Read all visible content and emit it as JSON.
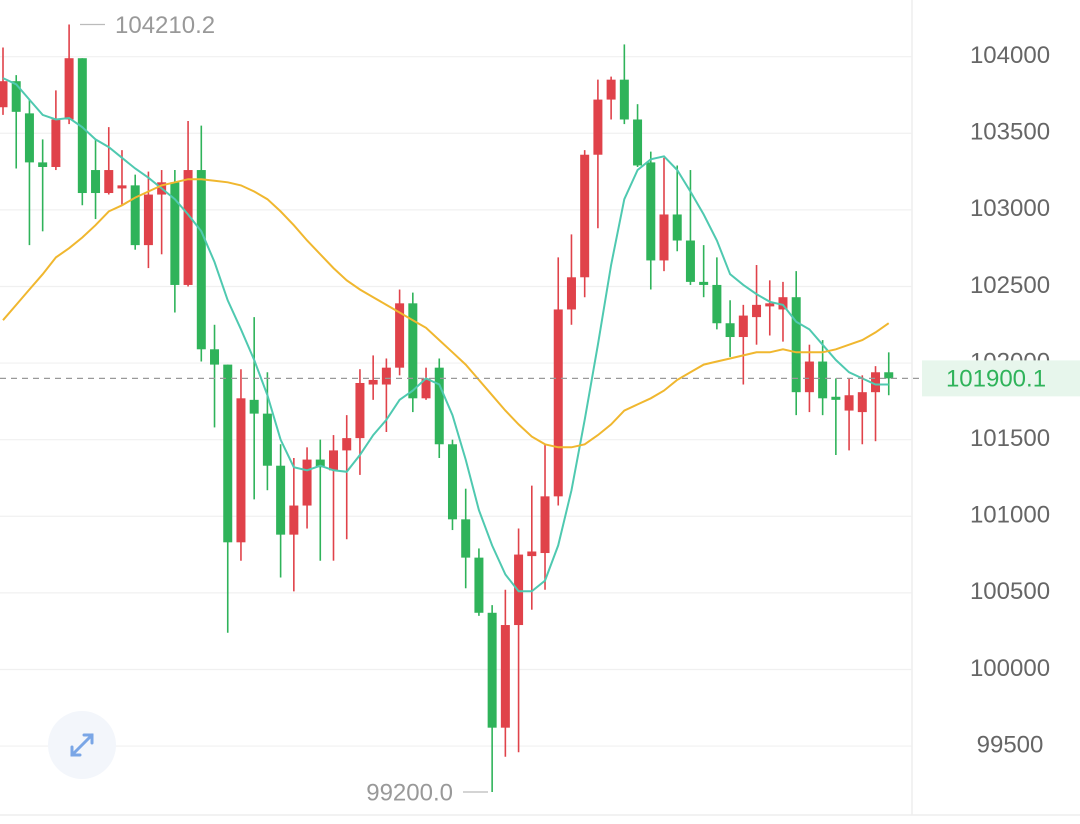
{
  "chart_data": {
    "type": "candlestick",
    "up_color": "#e0424a",
    "down_color": "#2fb35a",
    "open": [
      103670,
      103840,
      103630,
      103310,
      103280,
      103590,
      103990,
      103260,
      103110,
      103140,
      103160,
      102770,
      103100,
      103180,
      102510,
      103260,
      102090,
      101990,
      100830,
      101760,
      101670,
      101330,
      100880,
      101070,
      101370,
      101300,
      101430,
      101510,
      101860,
      101860,
      101970,
      102390,
      101770,
      101970,
      101470,
      100980,
      100730,
      100370,
      99620,
      100290,
      100740,
      100760,
      101130,
      102350,
      102560,
      103360,
      103720,
      103850,
      103590,
      103310,
      102670,
      102970,
      102800,
      102530,
      102510,
      102260,
      102170,
      102300,
      102370,
      102350,
      102430,
      101810,
      102010,
      101780,
      101690,
      101680,
      101810,
      101940
    ],
    "high": [
      104060,
      103880,
      103720,
      103460,
      103780,
      104210.2,
      103990,
      103460,
      103540,
      103390,
      103230,
      103250,
      103260,
      103260,
      103580,
      103550,
      102250,
      101990,
      101960,
      102300,
      101940,
      101470,
      101380,
      101450,
      101500,
      101530,
      101660,
      101960,
      102050,
      102030,
      102480,
      102460,
      101970,
      102030,
      101500,
      101180,
      100790,
      100420,
      100520,
      100920,
      101200,
      101470,
      102690,
      102840,
      103390,
      103850,
      103870,
      104080,
      103690,
      103380,
      103340,
      103290,
      103260,
      102770,
      102690,
      102410,
      102380,
      102640,
      102540,
      102530,
      102600,
      102120,
      102150,
      101900,
      101900,
      101920,
      101980,
      102070
    ],
    "low": [
      103620,
      103270,
      102770,
      102860,
      103260,
      103560,
      103030,
      102940,
      103100,
      103030,
      102740,
      102620,
      102710,
      102330,
      102500,
      102010,
      101580,
      100240,
      100710,
      101110,
      101170,
      100600,
      100510,
      100920,
      100710,
      100710,
      100850,
      101270,
      101760,
      101550,
      101920,
      101680,
      101760,
      101380,
      100910,
      100530,
      100350,
      99200,
      99430,
      99460,
      100390,
      100520,
      101070,
      102250,
      102430,
      102880,
      103590,
      103560,
      103280,
      102480,
      102600,
      102730,
      102510,
      102430,
      102220,
      102040,
      101860,
      102120,
      102180,
      102140,
      101660,
      101680,
      101660,
      101400,
      101430,
      101470,
      101490,
      101790
    ],
    "close": [
      103840,
      103640,
      103310,
      103280,
      103590,
      103990,
      103110,
      103110,
      103260,
      103160,
      102770,
      103100,
      103180,
      102510,
      103260,
      102090,
      101990,
      100830,
      101770,
      101670,
      101330,
      100880,
      101070,
      101370,
      101320,
      101430,
      101510,
      101870,
      101890,
      101970,
      102390,
      101770,
      101900,
      101470,
      100980,
      100730,
      100370,
      99620,
      100290,
      100750,
      100770,
      101130,
      102350,
      102560,
      103360,
      103720,
      103850,
      103590,
      103290,
      102670,
      102970,
      102800,
      102530,
      102510,
      102260,
      102170,
      102310,
      102380,
      102390,
      102430,
      101810,
      102010,
      101770,
      101760,
      101790,
      101810,
      101940,
      101900.1
    ],
    "overlays": [
      {
        "color": "#4fc9b0",
        "values": [
          103860,
          103820,
          103720,
          103620,
          103590,
          103600,
          103540,
          103460,
          103410,
          103340,
          103270,
          103210,
          103140,
          103070,
          102970,
          102860,
          102660,
          102410,
          102220,
          102020,
          101790,
          101500,
          101320,
          101300,
          101330,
          101300,
          101290,
          101400,
          101530,
          101630,
          101760,
          101820,
          101900,
          101860,
          101660,
          101370,
          101040,
          100810,
          100620,
          100510,
          100510,
          100580,
          100810,
          101170,
          101630,
          102120,
          102640,
          103070,
          103260,
          103330,
          103350,
          103260,
          103120,
          102970,
          102800,
          102580,
          102510,
          102450,
          102400,
          102380,
          102270,
          102220,
          102120,
          102020,
          101940,
          101900,
          101860,
          101860
        ]
      },
      {
        "color": "#f0b72f",
        "values": [
          102280,
          102380,
          102480,
          102580,
          102690,
          102750,
          102820,
          102900,
          102990,
          103030,
          103080,
          103120,
          103160,
          103180,
          103200,
          103200,
          103190,
          103180,
          103160,
          103120,
          103070,
          102990,
          102900,
          102800,
          102710,
          102620,
          102540,
          102480,
          102430,
          102380,
          102330,
          102280,
          102230,
          102150,
          102070,
          101990,
          101890,
          101790,
          101690,
          101600,
          101520,
          101470,
          101450,
          101450,
          101470,
          101530,
          101600,
          101690,
          101730,
          101770,
          101820,
          101890,
          101940,
          101990,
          102010,
          102030,
          102050,
          102070,
          102070,
          102090,
          102070,
          102070,
          102070,
          102090,
          102120,
          102150,
          102200,
          102260
        ]
      }
    ],
    "ylim": [
      99050,
      104370
    ],
    "yticks": [
      99500,
      100000,
      100500,
      101000,
      101500,
      102000,
      102500,
      103000,
      103500,
      104000
    ],
    "grid": true,
    "annotations": [
      {
        "value": 104210.2,
        "label": "104210.2"
      },
      {
        "value": 99200,
        "label": "99200.0"
      }
    ],
    "last_price": {
      "value": 101900.1,
      "label": "101900.1"
    }
  }
}
